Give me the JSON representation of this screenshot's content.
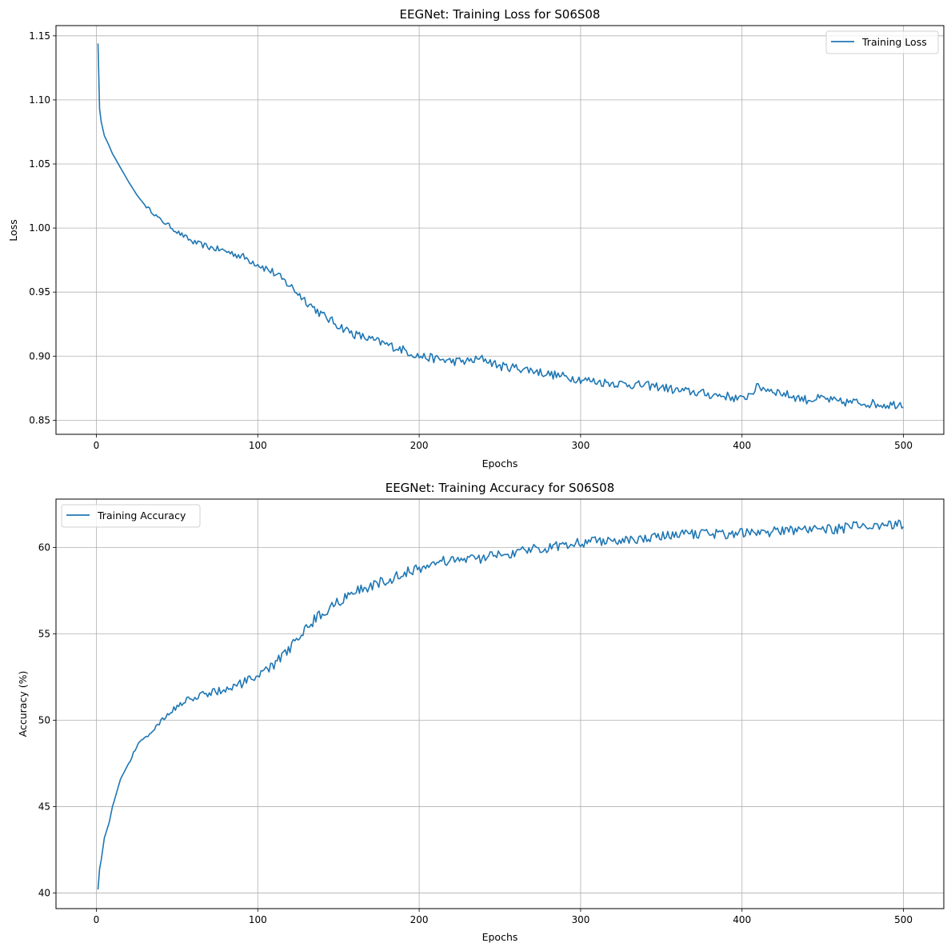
{
  "chart_data": [
    {
      "type": "line",
      "title": "EEGNet: Training Loss for S06S08",
      "xlabel": "Epochs",
      "ylabel": "Loss",
      "xlim": [
        -25,
        525
      ],
      "ylim": [
        0.839,
        1.158
      ],
      "xticks": [
        0,
        100,
        200,
        300,
        400,
        500
      ],
      "yticks": [
        0.85,
        0.9,
        0.95,
        1.0,
        1.05,
        1.1,
        1.15
      ],
      "ytick_labels": [
        "0.85",
        "0.90",
        "0.95",
        "1.00",
        "1.05",
        "1.10",
        "1.15"
      ],
      "grid": true,
      "legend_position": "upper right",
      "series": [
        {
          "name": "Training Loss",
          "color": "#1f77b4",
          "x": [
            1,
            2,
            3,
            5,
            8,
            10,
            15,
            20,
            25,
            30,
            35,
            40,
            45,
            50,
            55,
            60,
            70,
            80,
            90,
            100,
            110,
            120,
            130,
            140,
            150,
            160,
            170,
            180,
            190,
            200,
            210,
            220,
            230,
            240,
            250,
            260,
            270,
            280,
            290,
            300,
            310,
            320,
            330,
            340,
            350,
            360,
            370,
            380,
            390,
            400,
            410,
            420,
            430,
            440,
            450,
            460,
            470,
            480,
            490,
            500
          ],
          "values": [
            1.144,
            1.093,
            1.083,
            1.072,
            1.064,
            1.058,
            1.047,
            1.036,
            1.026,
            1.018,
            1.012,
            1.006,
            1.002,
            0.997,
            0.993,
            0.989,
            0.985,
            0.982,
            0.978,
            0.972,
            0.965,
            0.955,
            0.943,
            0.932,
            0.924,
            0.917,
            0.913,
            0.909,
            0.905,
            0.9,
            0.898,
            0.896,
            0.896,
            0.898,
            0.892,
            0.891,
            0.889,
            0.886,
            0.884,
            0.882,
            0.88,
            0.879,
            0.878,
            0.877,
            0.876,
            0.873,
            0.872,
            0.87,
            0.869,
            0.866,
            0.876,
            0.873,
            0.869,
            0.866,
            0.867,
            0.864,
            0.864,
            0.863,
            0.862,
            0.863
          ]
        }
      ]
    },
    {
      "type": "line",
      "title": "EEGNet: Training Accuracy for S06S08",
      "xlabel": "Epochs",
      "ylabel": "Accuracy (%)",
      "xlim": [
        -25,
        525
      ],
      "ylim": [
        39.1,
        62.8
      ],
      "xticks": [
        0,
        100,
        200,
        300,
        400,
        500
      ],
      "yticks": [
        40,
        45,
        50,
        55,
        60
      ],
      "ytick_labels": [
        "40",
        "45",
        "50",
        "55",
        "60"
      ],
      "grid": true,
      "legend_position": "upper left",
      "series": [
        {
          "name": "Training Accuracy",
          "color": "#1f77b4",
          "x": [
            1,
            2,
            3,
            5,
            8,
            10,
            15,
            20,
            25,
            30,
            35,
            40,
            45,
            50,
            55,
            60,
            70,
            80,
            90,
            100,
            110,
            120,
            130,
            140,
            150,
            160,
            170,
            180,
            190,
            200,
            210,
            220,
            230,
            240,
            250,
            260,
            270,
            280,
            290,
            300,
            310,
            320,
            330,
            340,
            350,
            360,
            370,
            380,
            390,
            400,
            410,
            420,
            430,
            440,
            450,
            460,
            470,
            480,
            490,
            500
          ],
          "values": [
            40.2,
            41.4,
            41.9,
            43.2,
            44.1,
            45.0,
            46.6,
            47.5,
            48.5,
            49.0,
            49.4,
            49.9,
            50.4,
            50.8,
            51.1,
            51.3,
            51.6,
            51.8,
            52.1,
            52.5,
            53.2,
            54.2,
            55.4,
            56.2,
            56.9,
            57.4,
            57.8,
            58.1,
            58.5,
            58.8,
            59.1,
            59.3,
            59.3,
            59.4,
            59.6,
            59.7,
            59.9,
            60.0,
            60.2,
            60.3,
            60.4,
            60.4,
            60.5,
            60.5,
            60.6,
            60.7,
            60.8,
            60.8,
            60.8,
            60.9,
            60.9,
            60.9,
            61.0,
            61.0,
            61.0,
            61.1,
            61.2,
            61.2,
            61.3,
            61.3
          ]
        }
      ]
    }
  ]
}
